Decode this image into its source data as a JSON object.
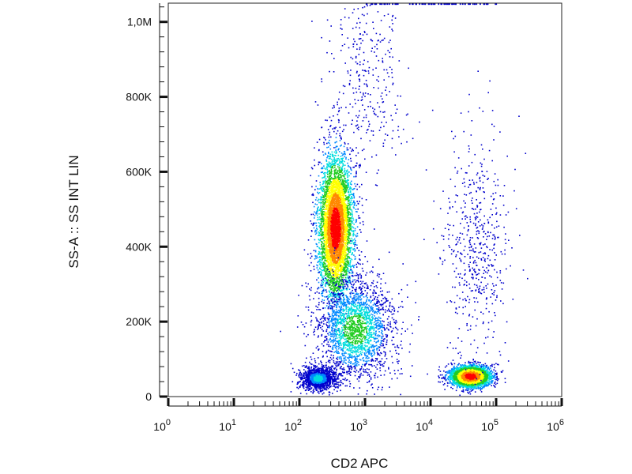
{
  "chart_data": {
    "type": "scatter",
    "subtype": "flow-cytometry-density-plot",
    "title": "",
    "xlabel": "CD2 APC",
    "ylabel": "SS-A :: SS INT LIN",
    "x_scale": "log",
    "xlim": [
      1,
      1000000
    ],
    "ylim": [
      0,
      1050000
    ],
    "x_ticks": [
      {
        "value": 1,
        "base": "10",
        "exp": "0"
      },
      {
        "value": 10,
        "base": "10",
        "exp": "1"
      },
      {
        "value": 100,
        "base": "10",
        "exp": "2"
      },
      {
        "value": 1000,
        "base": "10",
        "exp": "3"
      },
      {
        "value": 10000,
        "base": "10",
        "exp": "4"
      },
      {
        "value": 100000,
        "base": "10",
        "exp": "5"
      },
      {
        "value": 1000000,
        "base": "10",
        "exp": "6"
      }
    ],
    "y_ticks": [
      {
        "value": 0,
        "label": "0"
      },
      {
        "value": 200000,
        "label": "200K"
      },
      {
        "value": 400000,
        "label": "400K"
      },
      {
        "value": 600000,
        "label": "600K"
      },
      {
        "value": 800000,
        "label": "800K"
      },
      {
        "value": 1000000,
        "label": "1,0M"
      }
    ],
    "grid": false,
    "color_scale": [
      "#0000cc",
      "#0088ff",
      "#00dddd",
      "#22cc22",
      "#ffff00",
      "#ff8800",
      "#ff0000"
    ],
    "populations": [
      {
        "x_center": 350,
        "x_spread_decades": 0.13,
        "y_center": 450000,
        "y_spread": 95000,
        "count": 5200,
        "peak": "#ff0000"
      },
      {
        "x_center": 700,
        "x_spread_decades": 0.3,
        "y_center": 180000,
        "y_spread": 70000,
        "count": 2200,
        "peak": "#22cc22"
      },
      {
        "x_center": 190,
        "x_spread_decades": 0.13,
        "y_center": 50000,
        "y_spread": 15000,
        "count": 1300,
        "peak": "#00dddd"
      },
      {
        "x_center": 40000,
        "x_spread_decades": 0.15,
        "y_center": 55000,
        "y_spread": 14000,
        "count": 3200,
        "peak": "#ff0000"
      },
      {
        "x_center": 50000,
        "x_spread_decades": 0.25,
        "y_center": 400000,
        "y_spread": 150000,
        "count": 550,
        "peak": "#0000cc"
      },
      {
        "x_center": 1000,
        "x_spread_decades": 0.3,
        "y_center": 850000,
        "y_spread": 120000,
        "count": 350,
        "peak": "#0000cc"
      }
    ],
    "saturated_events_at_top": {
      "x_range": [
        1000,
        100000
      ],
      "y_value": 1050000,
      "count": 80
    }
  }
}
